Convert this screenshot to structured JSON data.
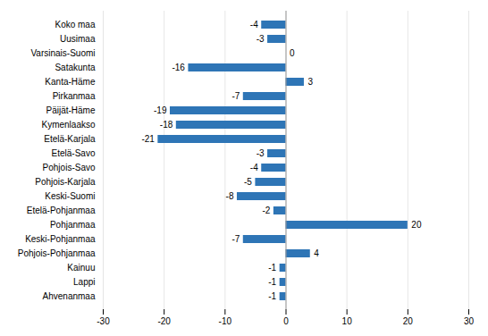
{
  "chart_data": {
    "type": "bar",
    "orientation": "horizontal",
    "categories": [
      "Koko maa",
      "Uusimaa",
      "Varsinais-Suomi",
      "Satakunta",
      "Kanta-Häme",
      "Pirkanmaa",
      "Päijät-Häme",
      "Kymenlaakso",
      "Etelä-Karjala",
      "Etelä-Savo",
      "Pohjois-Savo",
      "Pohjois-Karjala",
      "Keski-Suomi",
      "Etelä-Pohjanmaa",
      "Pohjanmaa",
      "Keski-Pohjanmaa",
      "Pohjois-Pohjanmaa",
      "Kainuu",
      "Lappi",
      "Ahvenanmaa"
    ],
    "values": [
      -4,
      -3,
      0,
      -16,
      3,
      -7,
      -19,
      -18,
      -21,
      -3,
      -4,
      -5,
      -8,
      -2,
      20,
      -7,
      4,
      -1,
      -1,
      -1
    ],
    "color": "#2E75B6",
    "xlim": [
      -30,
      30
    ],
    "xticks": [
      -30,
      -20,
      -10,
      0,
      10,
      20,
      30
    ],
    "grid": true,
    "data_labels": true
  }
}
